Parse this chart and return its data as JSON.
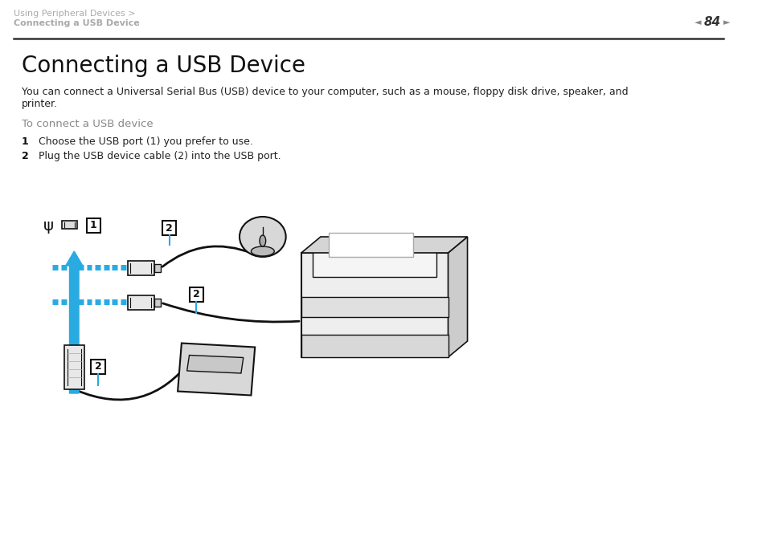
{
  "bg_color": "#ffffff",
  "header_breadcrumb_line1": "Using Peripheral Devices >",
  "header_breadcrumb_line2": "Connecting a USB Device",
  "header_page_num": "84",
  "title": "Connecting a USB Device",
  "body_text": "You can connect a Universal Serial Bus (USB) device to your computer, such as a mouse, floppy disk drive, speaker, and\nprinter.",
  "subheading": "To connect a USB device",
  "steps": [
    {
      "num": "1",
      "text": "Choose the USB port (1) you prefer to use."
    },
    {
      "num": "2",
      "text": "Plug the USB device cable (2) into the USB port."
    }
  ],
  "header_color": "#aaaaaa",
  "header_font_size": 8,
  "title_font_size": 20,
  "body_font_size": 9,
  "subheading_font_size": 9.5,
  "step_font_size": 9,
  "separator_color": "#333333",
  "blue_arrow_color": "#29ABE2",
  "dash_color": "#29ABE2",
  "line_color": "#111111",
  "label_box_color": "#111111"
}
